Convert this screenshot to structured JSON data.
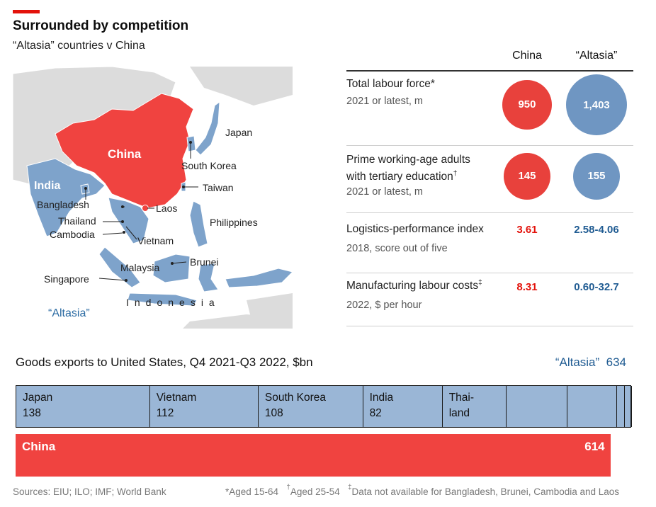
{
  "header": {
    "title": "Surrounded by competition",
    "subtitle": "“Altasia” countries v China"
  },
  "map": {
    "labels": {
      "china": "China",
      "india": "India",
      "japan": "Japan",
      "south_korea": "South Korea",
      "taiwan": "Taiwan",
      "bangladesh": "Bangladesh",
      "laos": "Laos",
      "thailand": "Thailand",
      "cambodia": "Cambodia",
      "vietnam": "Vietnam",
      "philippines": "Philippines",
      "malaysia": "Malaysia",
      "brunei": "Brunei",
      "singapore": "Singapore",
      "indonesia": "Indonesia",
      "altasia": "“Altasia”"
    },
    "colors": {
      "china": "#f04340",
      "altasia": "#7ea3cb",
      "other": "#dcdcdc"
    }
  },
  "comparison_table": {
    "columns": [
      "China",
      "“Altasia”"
    ],
    "rows": [
      {
        "label": "Total labour force",
        "marker": "*",
        "sub": "2021 or latest, m",
        "china": 950,
        "altasia": 1403,
        "china_text": "950",
        "altasia_text": "1,403"
      },
      {
        "label_line1": "Prime working-age adults",
        "label_line2": "with tertiary education",
        "marker": "†",
        "sub": "2021 or latest, m",
        "china": 145,
        "altasia": 155,
        "china_text": "145",
        "altasia_text": "155"
      },
      {
        "label": "Logistics-performance index",
        "sub": "2018, score out of five",
        "china_text": "3.61",
        "altasia_text": "2.58-4.06"
      },
      {
        "label": "Manufacturing labour costs",
        "marker": "‡",
        "sub": "2022, $ per hour",
        "china_text": "8.31",
        "altasia_text": "0.60-32.7"
      }
    ]
  },
  "chart_data": {
    "type": "bar",
    "title": "Goods exports to United States, Q4 2021-Q3 2022, $bn",
    "altasia_total_label": "“Altasia”",
    "altasia_total": 634,
    "china_label": "China",
    "china_total": 614,
    "altasia_segments": [
      {
        "name": "Japan",
        "value": 138,
        "value_text": "138"
      },
      {
        "name": "Vietnam",
        "value": 112,
        "value_text": "112"
      },
      {
        "name": "South Korea",
        "value": 108,
        "value_text": "108"
      },
      {
        "name": "India",
        "value": 82,
        "value_text": "82"
      },
      {
        "name_line1": "Thai-",
        "name_line2": "land",
        "value": 66
      },
      {
        "value": 63
      },
      {
        "value": 51
      },
      {
        "value": 8
      },
      {
        "value": 5
      },
      {
        "value": 1
      }
    ],
    "colors": {
      "altasia": "#9ab6d6",
      "china": "#f04340"
    }
  },
  "footer": {
    "sources": "Sources: EIU; ILO; IMF; World Bank",
    "note_aged_1564": "*Aged 15-64",
    "note_dagger_mark": "†",
    "note_aged_2554": "Aged 25-54",
    "note_ddagger_mark": "‡",
    "note_data": "Data not available for Bangladesh, Brunei, Cambodia and Laos"
  }
}
